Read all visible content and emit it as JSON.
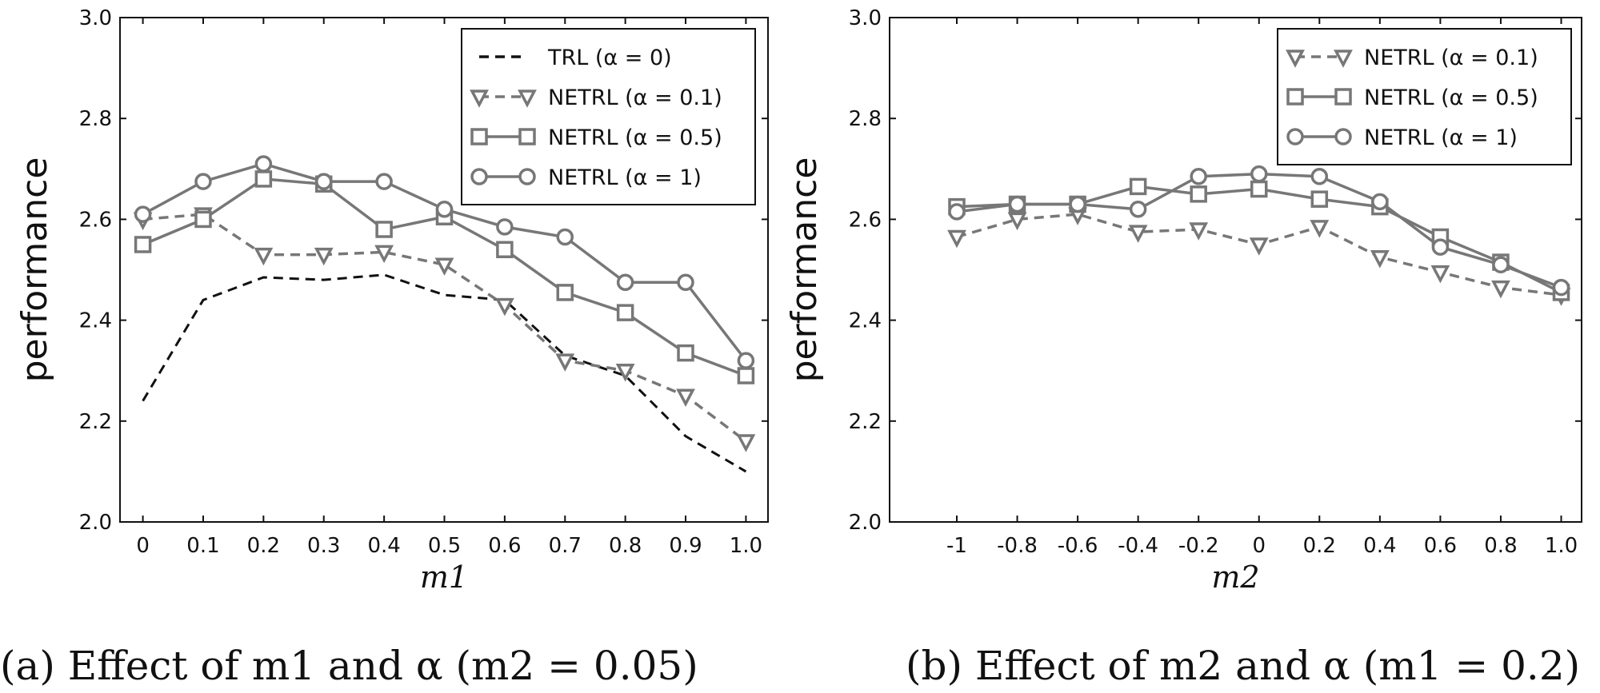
{
  "chart_data": [
    {
      "type": "line",
      "xlabel": "m1",
      "ylabel": "performance",
      "caption": "(a) Effect of m1 and α (m2 = 0.05)",
      "x": [
        "0",
        "0.1",
        "0.2",
        "0.3",
        "0.4",
        "0.5",
        "0.6",
        "0.7",
        "0.8",
        "0.9",
        "1.0"
      ],
      "ylim": [
        2.0,
        3.0
      ],
      "yticks": [
        "2.0",
        "2.2",
        "2.4",
        "2.6",
        "2.8",
        "3.0"
      ],
      "grid": false,
      "legend": "top-right",
      "series": [
        {
          "name": "TRL (α = 0)",
          "style": "dashed",
          "marker": "none",
          "color": "#111111",
          "values": [
            2.24,
            2.44,
            2.485,
            2.48,
            2.49,
            2.45,
            2.44,
            2.33,
            2.29,
            2.17,
            2.1
          ]
        },
        {
          "name": "NETRL (α = 0.1)",
          "style": "dashed",
          "marker": "triangle-down",
          "color": "#777777",
          "values": [
            2.6,
            2.61,
            2.53,
            2.53,
            2.535,
            2.51,
            2.43,
            2.32,
            2.3,
            2.25,
            2.16
          ]
        },
        {
          "name": "NETRL (α = 0.5)",
          "style": "solid",
          "marker": "square",
          "color": "#777777",
          "values": [
            2.55,
            2.6,
            2.68,
            2.67,
            2.58,
            2.605,
            2.54,
            2.455,
            2.415,
            2.335,
            2.29
          ]
        },
        {
          "name": "NETRL (α = 1)",
          "style": "solid",
          "marker": "circle",
          "color": "#777777",
          "values": [
            2.61,
            2.675,
            2.71,
            2.675,
            2.675,
            2.62,
            2.585,
            2.565,
            2.475,
            2.475,
            2.32
          ]
        }
      ]
    },
    {
      "type": "line",
      "xlabel": "m2",
      "ylabel": "performance",
      "caption": "(b) Effect of m2 and α (m1 = 0.2)",
      "x": [
        "-1",
        "-0.8",
        "-0.6",
        "-0.4",
        "-0.2",
        "0",
        "0.2",
        "0.4",
        "0.6",
        "0.8",
        "1.0"
      ],
      "ylim": [
        2.0,
        3.0
      ],
      "yticks": [
        "2.0",
        "2.2",
        "2.4",
        "2.6",
        "2.8",
        "3.0"
      ],
      "grid": false,
      "legend": "top-right",
      "series": [
        {
          "name": "NETRL (α = 0.1)",
          "style": "dashed",
          "marker": "triangle-down",
          "color": "#777777",
          "values": [
            2.565,
            2.6,
            2.61,
            2.575,
            2.58,
            2.55,
            2.585,
            2.525,
            2.495,
            2.465,
            2.45
          ]
        },
        {
          "name": "NETRL (α = 0.5)",
          "style": "solid",
          "marker": "square",
          "color": "#777777",
          "values": [
            2.625,
            2.63,
            2.63,
            2.665,
            2.65,
            2.66,
            2.64,
            2.625,
            2.565,
            2.515,
            2.455
          ]
        },
        {
          "name": "NETRL (α = 1)",
          "style": "solid",
          "marker": "circle",
          "color": "#777777",
          "values": [
            2.615,
            2.63,
            2.63,
            2.62,
            2.685,
            2.69,
            2.685,
            2.635,
            2.545,
            2.51,
            2.465
          ]
        }
      ]
    }
  ]
}
